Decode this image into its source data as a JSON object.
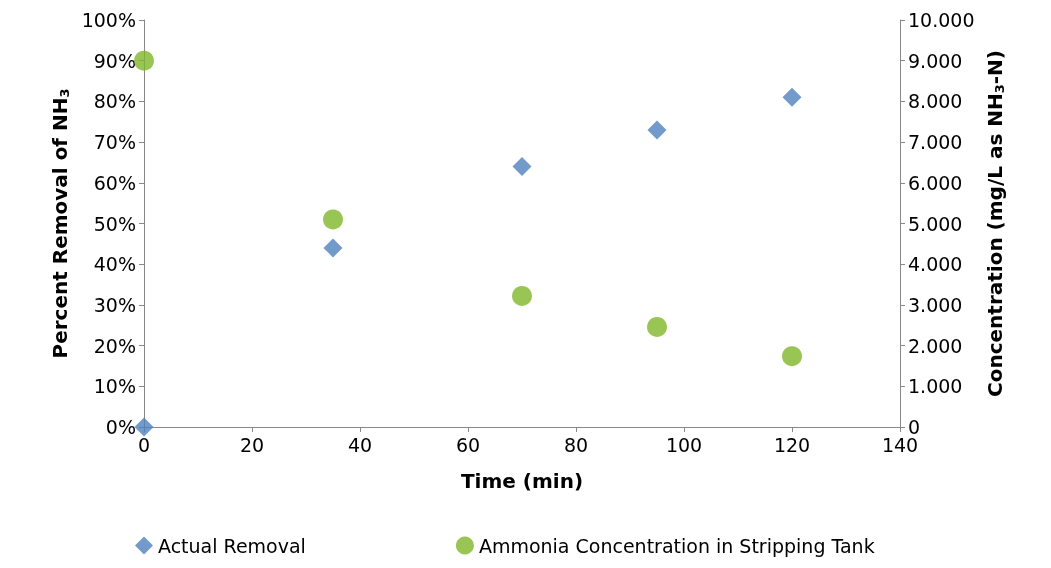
{
  "chart_data": {
    "type": "scatter",
    "xlabel": "Time (min)",
    "ylabel": "Percent Removal of NH$_{3}$",
    "y2label": "Concentration (mg/L as NH$_{3}$-N)",
    "x": [
      0,
      35,
      70,
      95,
      120
    ],
    "series": [
      {
        "name": "Actual Removal",
        "color": "#4f81bd",
        "marker": "diamond",
        "values": [
          0,
          44,
          64,
          73,
          81
        ]
      },
      {
        "name": "Ammonia Concentration in Stripping Tank",
        "color": "#7fb62a",
        "marker": "circle",
        "axis": "y2",
        "values": [
          9000,
          5100,
          3220,
          2460,
          1740
        ]
      }
    ],
    "xlim": [
      0,
      140
    ],
    "xticks": [
      0,
      20,
      40,
      60,
      80,
      100,
      120,
      140
    ],
    "ylim": [
      0,
      100
    ],
    "yticks": [
      {
        "value": 0,
        "label": "0%"
      },
      {
        "value": 10,
        "label": "10%"
      },
      {
        "value": 20,
        "label": "20%"
      },
      {
        "value": 30,
        "label": "30%"
      },
      {
        "value": 40,
        "label": "40%"
      },
      {
        "value": 50,
        "label": "50%"
      },
      {
        "value": 60,
        "label": "60%"
      },
      {
        "value": 70,
        "label": "70%"
      },
      {
        "value": 80,
        "label": "80%"
      },
      {
        "value": 90,
        "label": "90%"
      },
      {
        "value": 100,
        "label": "100%"
      }
    ],
    "y2lim": [
      0,
      10000
    ],
    "y2ticks": [
      0,
      {
        "value": 1000,
        "label": "1.000"
      },
      {
        "value": 2000,
        "label": "2.000"
      },
      {
        "value": 3000,
        "label": "3.000"
      },
      {
        "value": 4000,
        "label": "4.000"
      },
      {
        "value": 5000,
        "label": "5.000"
      },
      {
        "value": 6000,
        "label": "6.000"
      },
      {
        "value": 7000,
        "label": "7.000"
      },
      {
        "value": 8000,
        "label": "8.000"
      },
      {
        "value": 9000,
        "label": "9.000"
      },
      {
        "value": 10000,
        "label": "10.000"
      }
    ],
    "grid": false,
    "legend": "bottom"
  }
}
